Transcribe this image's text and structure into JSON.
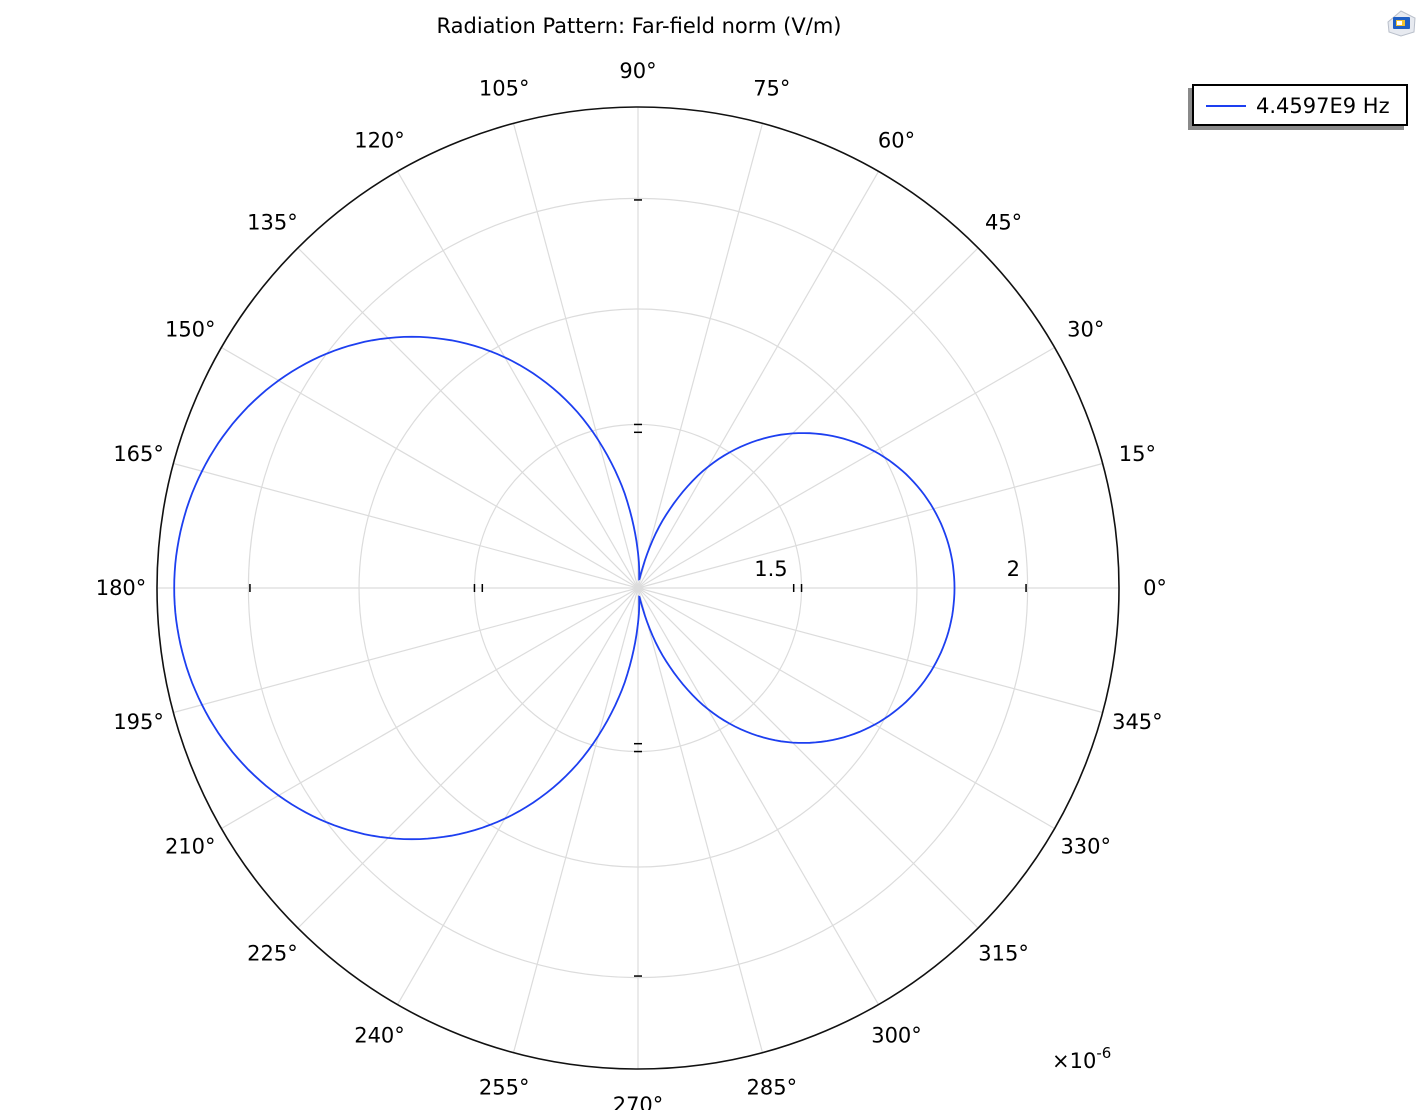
{
  "icon": "comsol-logo-icon",
  "chart_data": {
    "type": "polar",
    "title": "Radiation Pattern: Far-field norm (V/m)",
    "multiplier": "×10",
    "multiplier_exponent": "-6",
    "radial_range": [
      1.165,
      2.2
    ],
    "radial_ticks": [
      1.5,
      2
    ],
    "radial_tick_labels": [
      "1.5",
      "2"
    ],
    "angle_ticks_deg": [
      0,
      15,
      30,
      45,
      60,
      75,
      90,
      105,
      120,
      135,
      150,
      165,
      180,
      195,
      210,
      225,
      240,
      255,
      270,
      285,
      300,
      315,
      330,
      345
    ],
    "angle_tick_labels": [
      "0°",
      "15°",
      "30°",
      "45°",
      "60°",
      "75°",
      "90°",
      "105°",
      "120°",
      "135°",
      "150°",
      "165°",
      "180°",
      "195°",
      "210°",
      "225°",
      "240°",
      "255°",
      "270°",
      "285°",
      "300°",
      "315°",
      "330°",
      "345°"
    ],
    "grid": true,
    "legend_position": "top-right",
    "series": [
      {
        "name": "4.4597E9 Hz",
        "color": "#1d3ff0",
        "angles_deg": [
          0,
          10,
          20,
          30,
          40,
          50,
          60,
          70,
          80,
          90,
          100,
          110,
          120,
          130,
          140,
          150,
          160,
          170,
          180,
          190,
          200,
          210,
          220,
          230,
          240,
          250,
          260,
          270,
          280,
          290,
          300,
          310,
          320,
          330,
          340,
          350
        ],
        "values": [
          1.846,
          1.836,
          1.805,
          1.753,
          1.68,
          1.585,
          1.466,
          1.319,
          1.187,
          1.241,
          1.405,
          1.582,
          1.738,
          1.869,
          1.976,
          2.058,
          2.116,
          2.151,
          2.163,
          2.151,
          2.116,
          2.058,
          1.976,
          1.869,
          1.738,
          1.582,
          1.405,
          1.241,
          1.187,
          1.319,
          1.466,
          1.585,
          1.68,
          1.753,
          1.805,
          1.836
        ]
      }
    ]
  }
}
